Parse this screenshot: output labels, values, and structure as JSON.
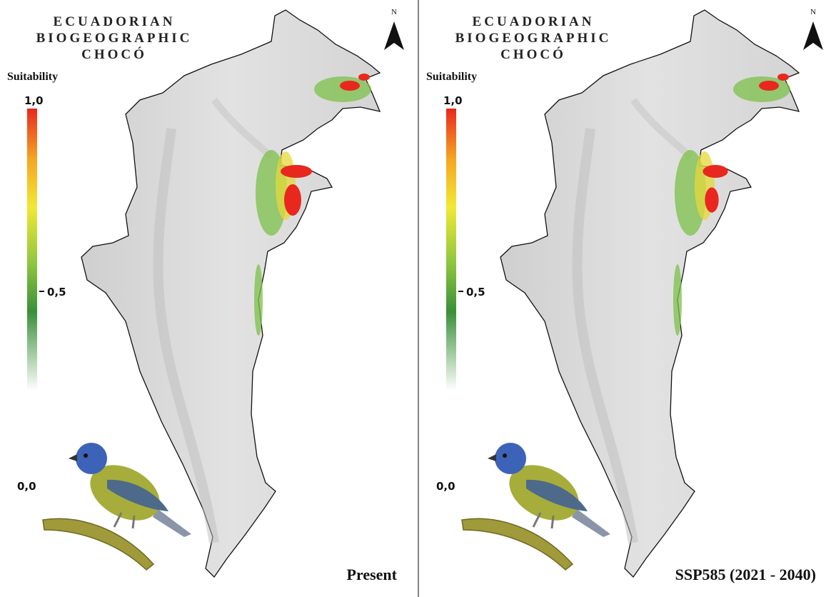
{
  "panels": [
    {
      "title": [
        "ECUADORIAN",
        "BIOGEOGRAPHIC",
        "CHOCÓ"
      ],
      "north": "N",
      "legend": {
        "title": "Suitability",
        "labels": [
          "1,0",
          "0,5",
          "0,0"
        ]
      },
      "scenario": "Present"
    },
    {
      "title": [
        "ECUADORIAN",
        "BIOGEOGRAPHIC",
        "CHOCÓ"
      ],
      "north": "N",
      "legend": {
        "title": "Suitability",
        "labels": [
          "1,0",
          "0,5",
          "0,0"
        ]
      },
      "scenario": "SSP585 (2021 - 2040)"
    }
  ]
}
